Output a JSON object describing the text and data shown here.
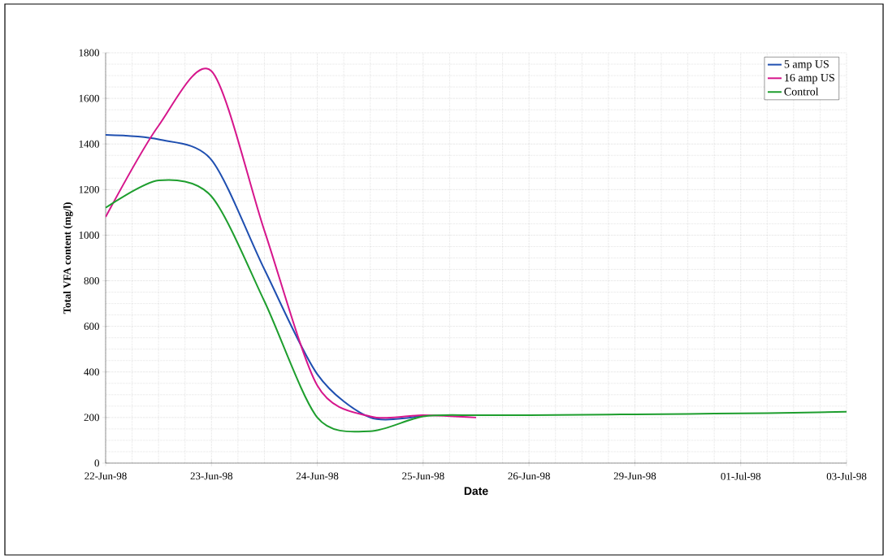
{
  "chart_data": {
    "type": "line",
    "xlabel": "Date",
    "ylabel": "Total VFA content (mg/l)",
    "categories": [
      "22-Jun-98",
      null,
      "23-Jun-98",
      null,
      "24-Jun-98",
      null,
      "25-Jun-98",
      null,
      "26-Jun-98",
      null,
      "29-Jun-98",
      null,
      "01-Jul-98",
      null,
      "03-Jul-98"
    ],
    "series": [
      {
        "name": "5 amp US",
        "color": "#1f4fb0",
        "values": [
          1440,
          1420,
          1330,
          850,
          390,
          200,
          210,
          null,
          null,
          null,
          null,
          null,
          null,
          null,
          null
        ]
      },
      {
        "name": "16 amp US",
        "color": "#d6168c",
        "values": [
          1080,
          1480,
          1720,
          1020,
          340,
          205,
          210,
          200,
          null,
          null,
          null,
          null,
          null,
          null,
          null
        ]
      },
      {
        "name": "Control",
        "color": "#1e9e2e",
        "values": [
          1120,
          1240,
          1170,
          710,
          200,
          140,
          205,
          210,
          210,
          212,
          214,
          216,
          218,
          221,
          225
        ]
      }
    ],
    "ylim": [
      0,
      1800
    ],
    "yticks": [
      0,
      200,
      400,
      600,
      800,
      1000,
      1200,
      1400,
      1600,
      1800
    ],
    "grid": true,
    "legend": "top right",
    "marker": "none",
    "line_style": "solid"
  }
}
